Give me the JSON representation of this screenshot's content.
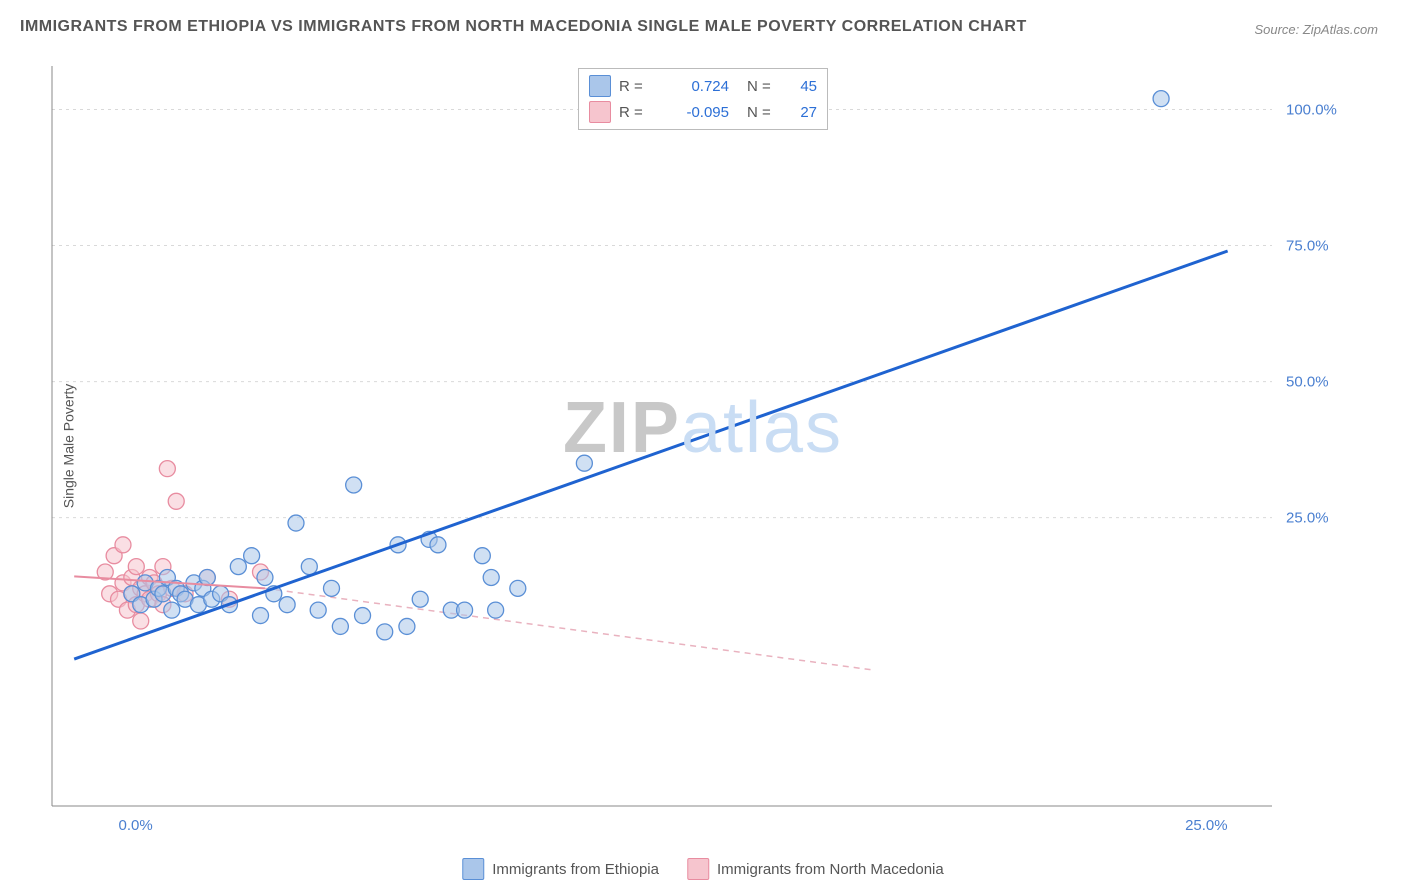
{
  "title": "IMMIGRANTS FROM ETHIOPIA VS IMMIGRANTS FROM NORTH MACEDONIA SINGLE MALE POVERTY CORRELATION CHART",
  "source": "Source: ZipAtlas.com",
  "y_axis_label": "Single Male Poverty",
  "watermark": {
    "left": "ZIP",
    "right": "atlas"
  },
  "legend_top": [
    {
      "swatch_fill": "#aac6ea",
      "swatch_stroke": "#5a8fd6",
      "r_label": "R =",
      "r_value": "0.724",
      "n_label": "N =",
      "n_value": "45"
    },
    {
      "swatch_fill": "#f6c5ce",
      "swatch_stroke": "#e88ca0",
      "r_label": "R =",
      "r_value": "-0.095",
      "n_label": "N =",
      "n_value": "27"
    }
  ],
  "legend_bottom": [
    {
      "swatch_fill": "#aac6ea",
      "swatch_stroke": "#5a8fd6",
      "label": "Immigrants from Ethiopia"
    },
    {
      "swatch_fill": "#f6c5ce",
      "swatch_stroke": "#e88ca0",
      "label": "Immigrants from North Macedonia"
    }
  ],
  "chart": {
    "type": "scatter",
    "background_color": "#ffffff",
    "grid_color": "#d9d9d9",
    "axis_color": "#888888",
    "tick_label_color": "#4a7fd0",
    "tick_fontsize": 15,
    "xlim": [
      -1.5,
      26
    ],
    "ylim": [
      -28,
      108
    ],
    "xticks": [
      0.0,
      25.0
    ],
    "yticks": [
      25.0,
      50.0,
      75.0,
      100.0
    ],
    "xtick_labels": [
      "0.0%",
      "25.0%"
    ],
    "ytick_labels": [
      "25.0%",
      "50.0%",
      "75.0%",
      "100.0%"
    ],
    "marker_radius": 8,
    "marker_opacity": 0.55,
    "series": [
      {
        "name": "ethiopia",
        "point_fill": "#aac6ea",
        "point_stroke": "#5a8fd6",
        "trend": {
          "stroke": "#1f63d0",
          "width": 3,
          "dash": null,
          "x1": -1.0,
          "y1": -1.0,
          "x2": 25.0,
          "y2": 74.0
        },
        "points": [
          [
            0.3,
            11
          ],
          [
            0.5,
            9
          ],
          [
            0.6,
            13
          ],
          [
            0.8,
            10
          ],
          [
            0.9,
            12
          ],
          [
            1.0,
            11
          ],
          [
            1.1,
            14
          ],
          [
            1.2,
            8
          ],
          [
            1.3,
            12
          ],
          [
            1.4,
            11
          ],
          [
            1.5,
            10
          ],
          [
            1.7,
            13
          ],
          [
            1.8,
            9
          ],
          [
            1.9,
            12
          ],
          [
            2.0,
            14
          ],
          [
            2.1,
            10
          ],
          [
            2.3,
            11
          ],
          [
            2.5,
            9
          ],
          [
            2.7,
            16
          ],
          [
            3.0,
            18
          ],
          [
            3.2,
            7
          ],
          [
            3.3,
            14
          ],
          [
            3.5,
            11
          ],
          [
            3.8,
            9
          ],
          [
            4.0,
            24
          ],
          [
            4.3,
            16
          ],
          [
            4.5,
            8
          ],
          [
            4.8,
            12
          ],
          [
            5.0,
            5
          ],
          [
            5.3,
            31
          ],
          [
            5.5,
            7
          ],
          [
            6.0,
            4
          ],
          [
            6.3,
            20
          ],
          [
            6.5,
            5
          ],
          [
            6.8,
            10
          ],
          [
            7.0,
            21
          ],
          [
            7.2,
            20
          ],
          [
            7.5,
            8
          ],
          [
            7.8,
            8
          ],
          [
            8.2,
            18
          ],
          [
            8.4,
            14
          ],
          [
            8.5,
            8
          ],
          [
            9.0,
            12
          ],
          [
            10.5,
            35
          ],
          [
            23.5,
            102
          ]
        ]
      },
      {
        "name": "macedonia",
        "point_fill": "#f6c5ce",
        "point_stroke": "#e88ca0",
        "trend": {
          "stroke": "#e88ca0",
          "width": 2,
          "dash": null,
          "x1": -1.0,
          "y1": 14.2,
          "x2": 3.3,
          "y2": 12.0
        },
        "trend_ext": {
          "stroke": "#e9b2bf",
          "width": 1.5,
          "dash": "6 5",
          "x1": 3.3,
          "y1": 12.0,
          "x2": 17.0,
          "y2": -3.0
        },
        "points": [
          [
            -0.3,
            15
          ],
          [
            -0.2,
            11
          ],
          [
            -0.1,
            18
          ],
          [
            0.0,
            10
          ],
          [
            0.1,
            13
          ],
          [
            0.1,
            20
          ],
          [
            0.2,
            8
          ],
          [
            0.3,
            14
          ],
          [
            0.3,
            11
          ],
          [
            0.4,
            9
          ],
          [
            0.4,
            16
          ],
          [
            0.5,
            12
          ],
          [
            0.5,
            6
          ],
          [
            0.6,
            11
          ],
          [
            0.7,
            14
          ],
          [
            0.7,
            10
          ],
          [
            0.8,
            13
          ],
          [
            0.9,
            11
          ],
          [
            1.0,
            16
          ],
          [
            1.0,
            9
          ],
          [
            1.1,
            34
          ],
          [
            1.2,
            12
          ],
          [
            1.3,
            28
          ],
          [
            1.5,
            11
          ],
          [
            2.0,
            14
          ],
          [
            2.5,
            10
          ],
          [
            3.2,
            15
          ]
        ]
      }
    ]
  }
}
